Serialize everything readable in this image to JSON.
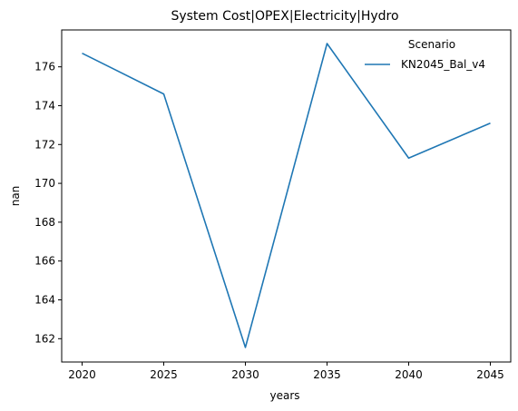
{
  "chart_data": {
    "type": "line",
    "title": "System Cost|OPEX|Electricity|Hydro",
    "xlabel": "years",
    "ylabel": "nan",
    "x": [
      2020,
      2025,
      2030,
      2035,
      2040,
      2045
    ],
    "xticks": [
      "2020",
      "2025",
      "2030",
      "2035",
      "2040",
      "2045"
    ],
    "yticks": [
      "162",
      "164",
      "166",
      "168",
      "170",
      "172",
      "174",
      "176"
    ],
    "xlim": [
      2018.75,
      2046.25
    ],
    "ylim": [
      160.8,
      177.9
    ],
    "grid": false,
    "legend": {
      "title": "Scenario",
      "placement": "top-right"
    },
    "series": [
      {
        "name": "KN2045_Bal_v4",
        "color": "#1f77b4",
        "values": [
          176.7,
          174.6,
          161.55,
          177.2,
          171.3,
          173.1
        ]
      }
    ]
  }
}
